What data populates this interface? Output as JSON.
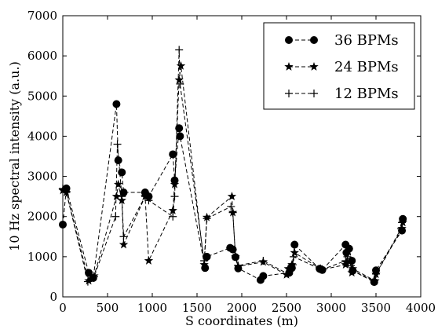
{
  "chart_data": {
    "type": "line",
    "title": "",
    "xlabel": "S coordinates (m)",
    "ylabel": "10 Hz spectral intensity (a.u.)",
    "xlim": [
      0,
      4000
    ],
    "ylim": [
      0,
      7000
    ],
    "xticks": [
      0,
      500,
      1000,
      1500,
      2000,
      2500,
      3000,
      3500,
      4000
    ],
    "yticks": [
      0,
      1000,
      2000,
      3000,
      4000,
      5000,
      6000,
      7000
    ],
    "grid": false,
    "legend_position": "top-right",
    "series": [
      {
        "name": "36 BPMs",
        "marker": "circle",
        "color": "#000000",
        "x": [
          0,
          40,
          290,
          340,
          600,
          620,
          660,
          680,
          920,
          960,
          1230,
          1250,
          1300,
          1310,
          1590,
          1610,
          1870,
          1900,
          1930,
          1960,
          2210,
          2240,
          2530,
          2560,
          2590,
          2870,
          2900,
          3160,
          3170,
          3200,
          3230,
          3240,
          3480,
          3500,
          3790,
          3800
        ],
        "y": [
          1800,
          2700,
          600,
          470,
          4800,
          3400,
          3100,
          2600,
          2600,
          2500,
          3550,
          2900,
          4200,
          4000,
          720,
          1000,
          1220,
          1180,
          990,
          710,
          420,
          520,
          600,
          720,
          1300,
          700,
          670,
          1300,
          1100,
          1200,
          900,
          650,
          370,
          660,
          1650,
          1940
        ]
      },
      {
        "name": "24 BPMs",
        "marker": "star",
        "color": "#000000",
        "x": [
          0,
          40,
          290,
          350,
          600,
          620,
          660,
          680,
          920,
          960,
          1230,
          1250,
          1300,
          1320,
          1580,
          1610,
          1890,
          1900,
          1930,
          1960,
          2240,
          2500,
          2520,
          2560,
          2590,
          2880,
          2900,
          3160,
          3170,
          3230,
          3240,
          3490,
          3500,
          3790,
          3800
        ],
        "y": [
          2650,
          2600,
          400,
          520,
          2500,
          2800,
          2400,
          1300,
          2500,
          900,
          2150,
          2800,
          5400,
          5750,
          800,
          1980,
          2500,
          2100,
          1000,
          760,
          870,
          550,
          700,
          800,
          1100,
          700,
          680,
          800,
          850,
          600,
          700,
          400,
          560,
          1700,
          1850
        ]
      },
      {
        "name": "12 BPMs",
        "marker": "plus",
        "color": "#000000",
        "x": [
          0,
          40,
          280,
          350,
          590,
          610,
          660,
          680,
          920,
          960,
          1230,
          1250,
          1300,
          1310,
          1580,
          1610,
          1880,
          1900,
          1930,
          1960,
          2240,
          2510,
          2540,
          2570,
          2580,
          2870,
          2900,
          3160,
          3180,
          3220,
          3240,
          3480,
          3500,
          3780,
          3790
        ],
        "y": [
          2700,
          2600,
          380,
          500,
          2000,
          3800,
          2500,
          1500,
          2500,
          2400,
          2000,
          2500,
          6150,
          5300,
          900,
          1950,
          2250,
          2100,
          1000,
          780,
          900,
          580,
          650,
          800,
          1000,
          700,
          680,
          900,
          1000,
          780,
          650,
          400,
          570,
          1700,
          1850
        ]
      }
    ]
  }
}
